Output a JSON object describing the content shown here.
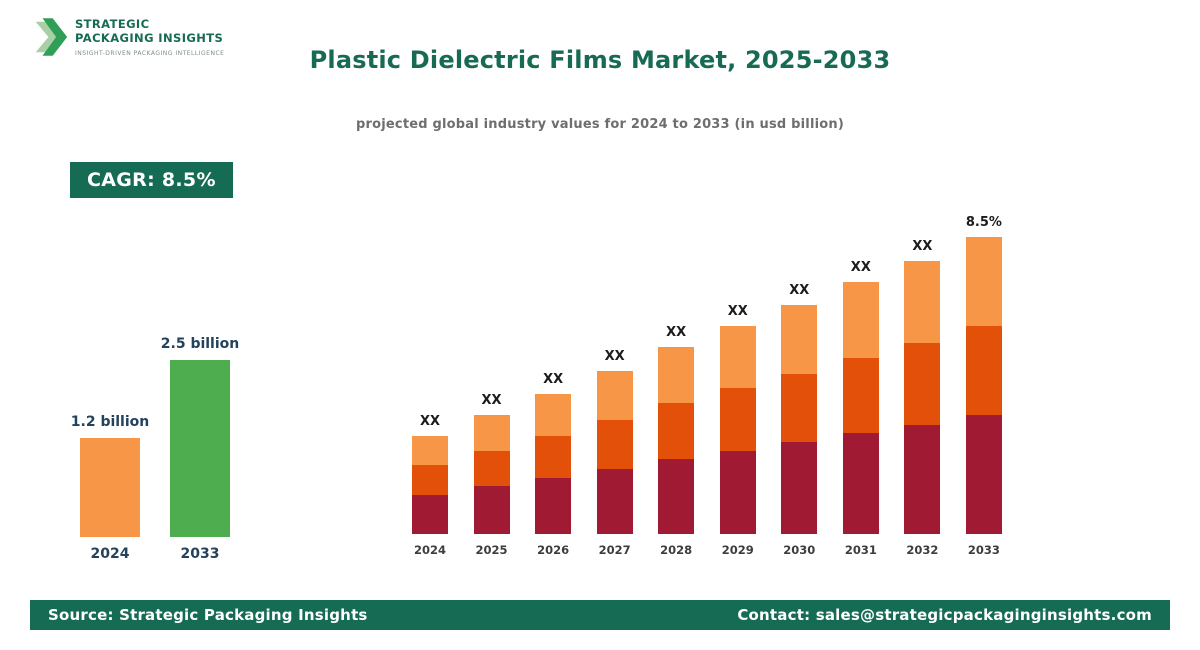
{
  "brand": {
    "line1": "STRATEGIC",
    "line2": "PACKAGING INSIGHTS",
    "tagline": "INSIGHT-DRIVEN PACKAGING INTELLIGENCE"
  },
  "header": {
    "title": "Plastic Dielectric Films Market, 2025-2033",
    "subtitle": "projected global industry values for 2024 to 2033 (in usd billion)"
  },
  "cagr": {
    "label": "CAGR: 8.5%"
  },
  "footer": {
    "source": "Source: Strategic Packaging Insights",
    "contact": "Contact: sales@strategicpackaginginsights.com"
  },
  "colors": {
    "brand_green": "#156B54",
    "title_green": "#176A53",
    "label_navy": "#24425C",
    "bar_orange": "#F79646",
    "bar_green": "#4EAD4F",
    "segment_bottom_maroon": "#A01A33",
    "segment_middle_orange_red": "#E2500A",
    "segment_top_light_orange": "#F79646"
  },
  "chart_data": [
    {
      "type": "bar",
      "name": "summary-growth-chart",
      "categories": [
        "2024",
        "2033"
      ],
      "values": [
        1.2,
        2.5
      ],
      "value_labels": [
        "1.2 billion",
        "2.5 billion"
      ],
      "colors": [
        "#F79646",
        "#4EAD4F"
      ],
      "heights_rel": [
        56,
        100
      ],
      "ylabel": "usd billion",
      "grid": false,
      "legend": false
    },
    {
      "type": "stacked-bar",
      "name": "yearly-projection-chart",
      "categories": [
        "2024",
        "2025",
        "2026",
        "2027",
        "2028",
        "2029",
        "2030",
        "2031",
        "2032",
        "2033"
      ],
      "bar_labels": [
        "XX",
        "XX",
        "XX",
        "XX",
        "XX",
        "XX",
        "XX",
        "XX",
        "XX",
        "8.5%"
      ],
      "totals_rel": [
        33,
        40,
        47,
        55,
        63,
        70,
        77,
        85,
        92,
        100
      ],
      "segment_fractions": {
        "bottom": 0.4,
        "middle": 0.3,
        "top": 0.3
      },
      "series": [
        {
          "name": "bottom",
          "color": "#A01A33"
        },
        {
          "name": "middle",
          "color": "#E2500A"
        },
        {
          "name": "top",
          "color": "#F79646"
        }
      ],
      "grid": false,
      "legend": false
    }
  ]
}
